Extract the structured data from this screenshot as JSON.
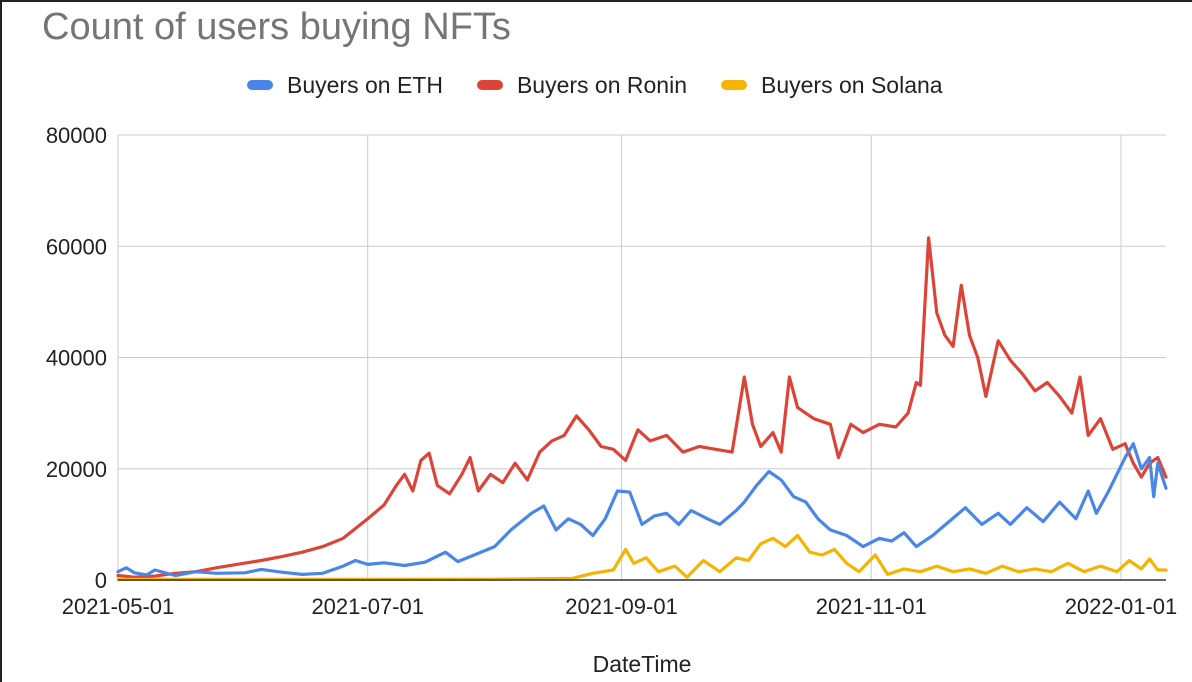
{
  "chart_data": {
    "type": "line",
    "title": "Count of users buying NFTs",
    "xlabel": "DateTime",
    "ylabel": "",
    "ylim": [
      0,
      80000
    ],
    "y_ticks": [
      0,
      20000,
      40000,
      60000,
      80000
    ],
    "x_ticks": [
      "2021-05-01",
      "2021-07-01",
      "2021-09-01",
      "2021-11-01",
      "2022-01-01"
    ],
    "x_range": [
      "2021-05-01",
      "2022-01-12"
    ],
    "grid": true,
    "legend_position": "top",
    "series": [
      {
        "name": "Buyers on ETH",
        "color": "#4a86e8",
        "points": [
          [
            "2021-05-01",
            1500
          ],
          [
            "2021-05-03",
            2200
          ],
          [
            "2021-05-05",
            1300
          ],
          [
            "2021-05-08",
            900
          ],
          [
            "2021-05-10",
            1800
          ],
          [
            "2021-05-15",
            800
          ],
          [
            "2021-05-20",
            1500
          ],
          [
            "2021-05-25",
            1200
          ],
          [
            "2021-06-01",
            1300
          ],
          [
            "2021-06-05",
            1900
          ],
          [
            "2021-06-10",
            1400
          ],
          [
            "2021-06-15",
            1000
          ],
          [
            "2021-06-20",
            1200
          ],
          [
            "2021-06-25",
            2500
          ],
          [
            "2021-06-28",
            3500
          ],
          [
            "2021-07-01",
            2800
          ],
          [
            "2021-07-05",
            3100
          ],
          [
            "2021-07-10",
            2600
          ],
          [
            "2021-07-15",
            3200
          ],
          [
            "2021-07-20",
            5000
          ],
          [
            "2021-07-23",
            3300
          ],
          [
            "2021-07-27",
            4500
          ],
          [
            "2021-08-01",
            6000
          ],
          [
            "2021-08-05",
            9000
          ],
          [
            "2021-08-10",
            12000
          ],
          [
            "2021-08-13",
            13300
          ],
          [
            "2021-08-16",
            9000
          ],
          [
            "2021-08-19",
            11000
          ],
          [
            "2021-08-22",
            10000
          ],
          [
            "2021-08-25",
            8000
          ],
          [
            "2021-08-28",
            11000
          ],
          [
            "2021-08-31",
            16000
          ],
          [
            "2021-09-03",
            15800
          ],
          [
            "2021-09-06",
            10000
          ],
          [
            "2021-09-09",
            11500
          ],
          [
            "2021-09-12",
            12000
          ],
          [
            "2021-09-15",
            10000
          ],
          [
            "2021-09-18",
            12500
          ],
          [
            "2021-09-22",
            11000
          ],
          [
            "2021-09-25",
            10000
          ],
          [
            "2021-09-29",
            12500
          ],
          [
            "2021-10-01",
            14000
          ],
          [
            "2021-10-04",
            17000
          ],
          [
            "2021-10-07",
            19500
          ],
          [
            "2021-10-10",
            18000
          ],
          [
            "2021-10-13",
            15000
          ],
          [
            "2021-10-16",
            14000
          ],
          [
            "2021-10-19",
            11000
          ],
          [
            "2021-10-22",
            9000
          ],
          [
            "2021-10-26",
            8000
          ],
          [
            "2021-10-30",
            6000
          ],
          [
            "2021-11-03",
            7500
          ],
          [
            "2021-11-06",
            7000
          ],
          [
            "2021-11-09",
            8500
          ],
          [
            "2021-11-12",
            6000
          ],
          [
            "2021-11-16",
            8000
          ],
          [
            "2021-11-20",
            10500
          ],
          [
            "2021-11-24",
            13000
          ],
          [
            "2021-11-28",
            10000
          ],
          [
            "2021-12-02",
            12000
          ],
          [
            "2021-12-05",
            10000
          ],
          [
            "2021-12-09",
            13000
          ],
          [
            "2021-12-13",
            10500
          ],
          [
            "2021-12-17",
            14000
          ],
          [
            "2021-12-21",
            11000
          ],
          [
            "2021-12-24",
            16000
          ],
          [
            "2021-12-26",
            12000
          ],
          [
            "2021-12-29",
            16000
          ],
          [
            "2022-01-02",
            22000
          ],
          [
            "2022-01-04",
            24500
          ],
          [
            "2022-01-06",
            20000
          ],
          [
            "2022-01-08",
            22000
          ],
          [
            "2022-01-09",
            15000
          ],
          [
            "2022-01-10",
            21000
          ],
          [
            "2022-01-12",
            16500
          ]
        ]
      },
      {
        "name": "Buyers on Ronin",
        "color": "#db4437",
        "points": [
          [
            "2021-05-01",
            800
          ],
          [
            "2021-05-05",
            500
          ],
          [
            "2021-05-10",
            700
          ],
          [
            "2021-05-15",
            1200
          ],
          [
            "2021-05-20",
            1500
          ],
          [
            "2021-05-25",
            2200
          ],
          [
            "2021-05-30",
            2800
          ],
          [
            "2021-06-05",
            3500
          ],
          [
            "2021-06-10",
            4200
          ],
          [
            "2021-06-15",
            5000
          ],
          [
            "2021-06-20",
            6000
          ],
          [
            "2021-06-25",
            7500
          ],
          [
            "2021-07-01",
            11000
          ],
          [
            "2021-07-05",
            13500
          ],
          [
            "2021-07-08",
            17000
          ],
          [
            "2021-07-10",
            19000
          ],
          [
            "2021-07-12",
            16000
          ],
          [
            "2021-07-14",
            21500
          ],
          [
            "2021-07-16",
            22800
          ],
          [
            "2021-07-18",
            17000
          ],
          [
            "2021-07-21",
            15500
          ],
          [
            "2021-07-24",
            19000
          ],
          [
            "2021-07-26",
            22000
          ],
          [
            "2021-07-28",
            16000
          ],
          [
            "2021-07-31",
            19000
          ],
          [
            "2021-08-03",
            17500
          ],
          [
            "2021-08-06",
            21000
          ],
          [
            "2021-08-09",
            18000
          ],
          [
            "2021-08-12",
            23000
          ],
          [
            "2021-08-15",
            25000
          ],
          [
            "2021-08-18",
            26000
          ],
          [
            "2021-08-21",
            29500
          ],
          [
            "2021-08-24",
            27000
          ],
          [
            "2021-08-27",
            24000
          ],
          [
            "2021-08-30",
            23500
          ],
          [
            "2021-09-02",
            21500
          ],
          [
            "2021-09-05",
            27000
          ],
          [
            "2021-09-08",
            25000
          ],
          [
            "2021-09-12",
            26000
          ],
          [
            "2021-09-16",
            23000
          ],
          [
            "2021-09-20",
            24000
          ],
          [
            "2021-09-24",
            23500
          ],
          [
            "2021-09-28",
            23000
          ],
          [
            "2021-10-01",
            36500
          ],
          [
            "2021-10-03",
            28000
          ],
          [
            "2021-10-05",
            24000
          ],
          [
            "2021-10-08",
            26500
          ],
          [
            "2021-10-10",
            23000
          ],
          [
            "2021-10-12",
            36500
          ],
          [
            "2021-10-14",
            31000
          ],
          [
            "2021-10-18",
            29000
          ],
          [
            "2021-10-22",
            28000
          ],
          [
            "2021-10-24",
            22000
          ],
          [
            "2021-10-27",
            28000
          ],
          [
            "2021-10-30",
            26500
          ],
          [
            "2021-11-03",
            28000
          ],
          [
            "2021-11-07",
            27500
          ],
          [
            "2021-11-10",
            30000
          ],
          [
            "2021-11-12",
            35500
          ],
          [
            "2021-11-13",
            35000
          ],
          [
            "2021-11-15",
            61500
          ],
          [
            "2021-11-17",
            48000
          ],
          [
            "2021-11-19",
            44000
          ],
          [
            "2021-11-21",
            42000
          ],
          [
            "2021-11-23",
            53000
          ],
          [
            "2021-11-25",
            44000
          ],
          [
            "2021-11-27",
            40000
          ],
          [
            "2021-11-29",
            33000
          ],
          [
            "2021-12-02",
            43000
          ],
          [
            "2021-12-05",
            39500
          ],
          [
            "2021-12-08",
            37000
          ],
          [
            "2021-12-11",
            34000
          ],
          [
            "2021-12-14",
            35500
          ],
          [
            "2021-12-17",
            33000
          ],
          [
            "2021-12-20",
            30000
          ],
          [
            "2021-12-22",
            36500
          ],
          [
            "2021-12-24",
            26000
          ],
          [
            "2021-12-27",
            29000
          ],
          [
            "2021-12-30",
            23500
          ],
          [
            "2022-01-02",
            24500
          ],
          [
            "2022-01-04",
            21000
          ],
          [
            "2022-01-06",
            18500
          ],
          [
            "2022-01-08",
            21000
          ],
          [
            "2022-01-10",
            22000
          ],
          [
            "2022-01-12",
            18500
          ]
        ]
      },
      {
        "name": "Buyers on Solana",
        "color": "#f4b400",
        "points": [
          [
            "2021-05-01",
            100
          ],
          [
            "2021-06-01",
            100
          ],
          [
            "2021-07-01",
            100
          ],
          [
            "2021-08-01",
            150
          ],
          [
            "2021-08-20",
            300
          ],
          [
            "2021-08-25",
            1200
          ],
          [
            "2021-08-30",
            1800
          ],
          [
            "2021-09-02",
            5500
          ],
          [
            "2021-09-04",
            3000
          ],
          [
            "2021-09-07",
            4000
          ],
          [
            "2021-09-10",
            1500
          ],
          [
            "2021-09-14",
            2500
          ],
          [
            "2021-09-17",
            500
          ],
          [
            "2021-09-21",
            3500
          ],
          [
            "2021-09-25",
            1500
          ],
          [
            "2021-09-29",
            4000
          ],
          [
            "2021-10-02",
            3500
          ],
          [
            "2021-10-05",
            6500
          ],
          [
            "2021-10-08",
            7500
          ],
          [
            "2021-10-11",
            6000
          ],
          [
            "2021-10-14",
            8000
          ],
          [
            "2021-10-17",
            5000
          ],
          [
            "2021-10-20",
            4500
          ],
          [
            "2021-10-23",
            5500
          ],
          [
            "2021-10-26",
            3000
          ],
          [
            "2021-10-29",
            1500
          ],
          [
            "2021-11-02",
            4500
          ],
          [
            "2021-11-05",
            1000
          ],
          [
            "2021-11-09",
            2000
          ],
          [
            "2021-11-13",
            1500
          ],
          [
            "2021-11-17",
            2500
          ],
          [
            "2021-11-21",
            1500
          ],
          [
            "2021-11-25",
            2000
          ],
          [
            "2021-11-29",
            1200
          ],
          [
            "2021-12-03",
            2500
          ],
          [
            "2021-12-07",
            1500
          ],
          [
            "2021-12-11",
            2000
          ],
          [
            "2021-12-15",
            1500
          ],
          [
            "2021-12-19",
            3000
          ],
          [
            "2021-12-23",
            1500
          ],
          [
            "2021-12-27",
            2500
          ],
          [
            "2021-12-31",
            1500
          ],
          [
            "2022-01-03",
            3500
          ],
          [
            "2022-01-06",
            2000
          ],
          [
            "2022-01-08",
            3800
          ],
          [
            "2022-01-10",
            1800
          ],
          [
            "2022-01-12",
            1800
          ]
        ]
      }
    ]
  }
}
